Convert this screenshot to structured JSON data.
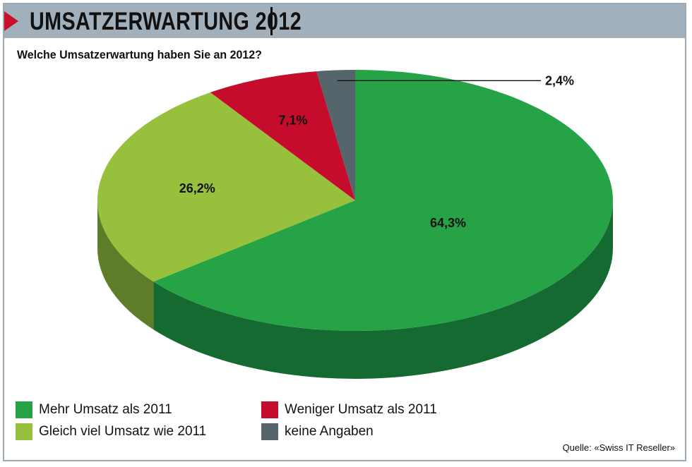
{
  "header": {
    "title": "UMSATZERWARTUNG 2012"
  },
  "question": "Welche Umsatzerwartung haben Sie an 2012?",
  "chart_data": {
    "type": "pie",
    "subtype": "3d",
    "series": [
      {
        "name": "Mehr Umsatz als 2011",
        "value": 64.3,
        "label": "64,3%",
        "color": "#27a347",
        "side_color": "#146a30"
      },
      {
        "name": "Gleich viel Umsatz wie 2011",
        "value": 26.2,
        "label": "26,2%",
        "color": "#97c03c",
        "side_color": "#5e7d28"
      },
      {
        "name": "Weniger Umsatz als 2011",
        "value": 7.1,
        "label": "7,1%",
        "color": "#c50c2d",
        "side_color": "#7d0a1f"
      },
      {
        "name": "keine Angaben",
        "value": 2.4,
        "label": "2,4%",
        "color": "#56656c",
        "side_color": "#39454b"
      }
    ],
    "start": "12 o'clock",
    "direction": "clockwise"
  },
  "legend": [
    {
      "label": "Mehr Umsatz als 2011",
      "color": "#27a347"
    },
    {
      "label": "Gleich viel Umsatz wie 2011",
      "color": "#97c03c"
    },
    {
      "label": "Weniger Umsatz als 2011",
      "color": "#c50c2d"
    },
    {
      "label": "keine Angaben",
      "color": "#56656c"
    }
  ],
  "source": "Quelle: «Swiss IT Reseller»",
  "colors": {
    "header_bg": "#a1b0bb",
    "accent_red": "#c8102e",
    "frame": "#9aa9b4"
  }
}
